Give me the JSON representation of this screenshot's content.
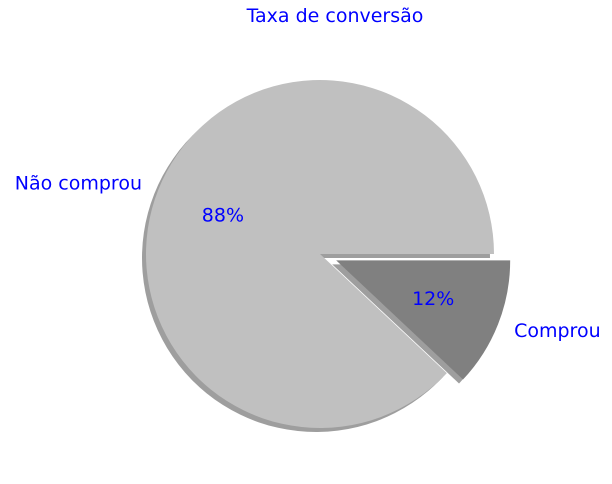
{
  "chart_data": {
    "type": "pie",
    "title": "Taxa de conversão",
    "categories": [
      "Comprou",
      "Não comprou"
    ],
    "values": [
      12,
      88
    ],
    "percent_labels": [
      "12%",
      "88%"
    ],
    "colors": [
      "#808080",
      "#c0c0c0"
    ],
    "exploded": [
      "Comprou"
    ],
    "shadow": true,
    "text_color": "#0000ff"
  }
}
